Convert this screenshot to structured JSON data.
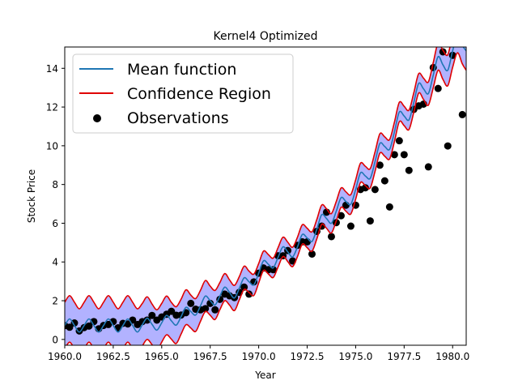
{
  "chart_data": {
    "type": "line",
    "title": "Kernel4 Optimized",
    "xlabel": "Year",
    "ylabel": "Stock Price",
    "xlim": [
      1960,
      1980.7
    ],
    "ylim": [
      -0.3,
      15.1
    ],
    "xticks": [
      1960,
      1962.5,
      1965,
      1967.5,
      1970,
      1972.5,
      1975,
      1977.5,
      1980
    ],
    "xtick_labels": [
      "1960.0",
      "1962.5",
      "1965.0",
      "1967.5",
      "1970.0",
      "1972.5",
      "1975.0",
      "1977.5",
      "1980.0"
    ],
    "yticks": [
      0,
      2,
      4,
      6,
      8,
      10,
      12,
      14
    ],
    "ytick_labels": [
      "0",
      "2",
      "4",
      "6",
      "8",
      "10",
      "12",
      "14"
    ],
    "grid": false,
    "legend": {
      "location": "top-left",
      "entries": [
        "Mean function",
        "Confidence Region",
        "Observations"
      ]
    },
    "colors": {
      "mean": "#1f77b4",
      "confidence": "#e00000",
      "fill": "#7f7fff",
      "observations": "#000000"
    },
    "series": [
      {
        "name": "Mean function",
        "kind": "line",
        "x": [
          1960.0,
          1960.25,
          1960.5,
          1960.75,
          1961.0,
          1961.25,
          1961.5,
          1961.75,
          1962.0,
          1962.25,
          1962.5,
          1962.75,
          1963.0,
          1963.25,
          1963.5,
          1963.75,
          1964.0,
          1964.25,
          1964.5,
          1964.75,
          1965.0,
          1965.25,
          1965.5,
          1965.75,
          1966.0,
          1966.25,
          1966.5,
          1966.75,
          1967.0,
          1967.25,
          1967.5,
          1967.75,
          1968.0,
          1968.25,
          1968.5,
          1968.75,
          1969.0,
          1969.25,
          1969.5,
          1969.75,
          1970.0,
          1970.25,
          1970.5,
          1970.75,
          1971.0,
          1971.25,
          1971.5,
          1971.75,
          1972.0,
          1972.25,
          1972.5,
          1972.75,
          1973.0,
          1973.25,
          1973.5,
          1973.75,
          1974.0,
          1974.25,
          1974.5,
          1974.75,
          1975.0,
          1975.25,
          1975.5,
          1975.75,
          1976.0,
          1976.25,
          1976.5,
          1976.75,
          1977.0,
          1977.25,
          1977.5,
          1977.75,
          1978.0,
          1978.25,
          1978.5,
          1978.75,
          1979.0,
          1979.25,
          1979.5,
          1979.75,
          1980.0,
          1980.25,
          1980.5,
          1980.7
        ],
        "y": [
          0.72,
          1.06,
          0.72,
          0.38,
          0.72,
          1.06,
          0.72,
          0.38,
          0.72,
          1.06,
          0.72,
          0.38,
          0.72,
          1.06,
          0.72,
          0.38,
          0.76,
          1.1,
          0.78,
          0.48,
          0.86,
          1.24,
          0.96,
          0.74,
          1.18,
          1.66,
          1.44,
          1.26,
          1.74,
          2.24,
          2.0,
          1.78,
          2.24,
          2.7,
          2.42,
          2.14,
          2.64,
          3.18,
          2.98,
          2.82,
          3.42,
          4.06,
          3.88,
          3.7,
          4.24,
          4.78,
          4.52,
          4.26,
          4.78,
          5.42,
          5.24,
          5.06,
          5.7,
          6.44,
          6.24,
          6.0,
          6.62,
          7.32,
          7.12,
          6.98,
          7.74,
          8.6,
          8.44,
          8.32,
          9.18,
          10.12,
          9.96,
          9.82,
          10.72,
          11.74,
          11.54,
          11.34,
          12.24,
          13.22,
          12.94,
          12.7,
          13.64,
          14.6,
          14.18,
          13.9,
          14.9,
          15.7,
          15.18,
          14.9
        ]
      },
      {
        "name": "Confidence Region",
        "kind": "band",
        "half_width": [
          1.2,
          1.2,
          1.2,
          1.2,
          1.2,
          1.2,
          1.2,
          1.2,
          1.2,
          1.2,
          1.2,
          1.2,
          1.2,
          1.2,
          1.2,
          1.2,
          1.1,
          1.1,
          1.05,
          1.05,
          1.0,
          1.0,
          0.95,
          0.95,
          0.9,
          0.9,
          0.85,
          0.85,
          0.8,
          0.8,
          0.75,
          0.75,
          0.7,
          0.7,
          0.65,
          0.65,
          0.6,
          0.6,
          0.55,
          0.55,
          0.5,
          0.5,
          0.5,
          0.5,
          0.5,
          0.5,
          0.5,
          0.5,
          0.5,
          0.5,
          0.5,
          0.5,
          0.5,
          0.5,
          0.5,
          0.5,
          0.5,
          0.5,
          0.5,
          0.5,
          0.5,
          0.5,
          0.5,
          0.5,
          0.5,
          0.5,
          0.5,
          0.5,
          0.5,
          0.5,
          0.5,
          0.5,
          0.5,
          0.5,
          0.55,
          0.6,
          0.65,
          0.7,
          0.75,
          0.8,
          0.85,
          0.9,
          0.95,
          1.0
        ]
      },
      {
        "name": "Observations",
        "kind": "scatter",
        "x": [
          1960.0,
          1960.25,
          1960.5,
          1960.75,
          1961.0,
          1961.25,
          1961.5,
          1961.75,
          1962.0,
          1962.25,
          1962.5,
          1962.75,
          1963.0,
          1963.25,
          1963.5,
          1963.75,
          1964.0,
          1964.25,
          1964.5,
          1964.75,
          1965.0,
          1965.25,
          1965.5,
          1965.75,
          1966.0,
          1966.25,
          1966.5,
          1966.75,
          1967.0,
          1967.25,
          1967.5,
          1967.75,
          1968.0,
          1968.25,
          1968.5,
          1968.75,
          1969.0,
          1969.25,
          1969.5,
          1969.75,
          1970.0,
          1970.25,
          1970.5,
          1970.75,
          1971.0,
          1971.25,
          1971.5,
          1971.75,
          1972.0,
          1972.25,
          1972.5,
          1972.75,
          1973.0,
          1973.25,
          1973.5,
          1973.75,
          1974.0,
          1974.25,
          1974.5,
          1974.75,
          1975.0,
          1975.25,
          1975.5,
          1975.75,
          1976.0,
          1976.25,
          1976.5,
          1976.75,
          1977.0,
          1977.25,
          1977.5,
          1977.75,
          1978.0,
          1978.25,
          1978.5,
          1978.75,
          1979.0,
          1979.25,
          1979.5,
          1979.75,
          1980.0,
          1980.5
        ],
        "y": [
          0.71,
          0.63,
          0.85,
          0.44,
          0.61,
          0.69,
          0.92,
          0.55,
          0.72,
          0.77,
          0.92,
          0.6,
          0.83,
          0.8,
          1.0,
          0.77,
          0.92,
          1.0,
          1.24,
          1.0,
          1.16,
          1.3,
          1.45,
          1.25,
          1.26,
          1.38,
          1.86,
          1.56,
          1.53,
          1.59,
          1.86,
          1.53,
          2.07,
          2.34,
          2.25,
          2.16,
          2.43,
          2.7,
          2.34,
          2.97,
          3.42,
          3.69,
          3.6,
          3.6,
          4.32,
          4.32,
          4.59,
          4.05,
          4.86,
          5.04,
          5.04,
          4.41,
          5.58,
          5.85,
          6.57,
          5.31,
          6.03,
          6.39,
          6.93,
          5.85,
          6.93,
          7.74,
          7.83,
          6.12,
          7.74,
          9.0,
          8.19,
          6.84,
          9.54,
          10.26,
          9.54,
          8.73,
          11.88,
          12.06,
          12.15,
          8.91,
          14.04,
          12.96,
          14.85,
          9.99,
          14.67,
          11.61
        ]
      }
    ]
  }
}
